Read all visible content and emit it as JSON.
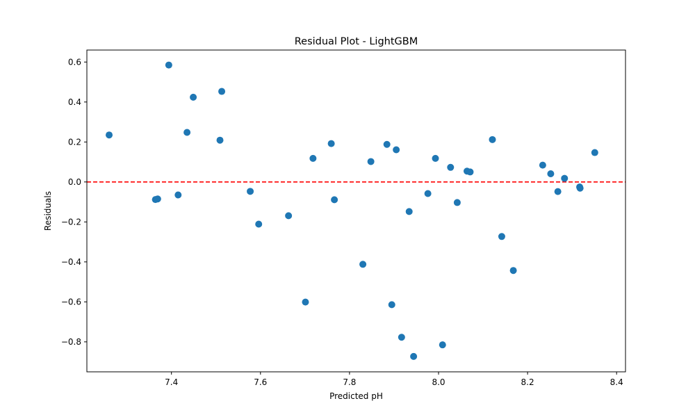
{
  "chart_data": {
    "type": "scatter",
    "title": "Residual Plot - LightGBM",
    "xlabel": "Predicted pH",
    "ylabel": "Residuals",
    "xlim": [
      7.21,
      8.42
    ],
    "ylim": [
      -0.95,
      0.66
    ],
    "xticks": [
      7.4,
      7.6,
      7.8,
      8.0,
      8.2,
      8.4
    ],
    "xtick_labels": [
      "7.4",
      "7.6",
      "7.8",
      "8.0",
      "8.2",
      "8.4"
    ],
    "yticks": [
      0.6,
      0.4,
      0.2,
      0.0,
      -0.2,
      -0.4,
      -0.6,
      -0.8
    ],
    "ytick_labels": [
      "0.6",
      "0.4",
      "0.2",
      "0.0",
      "−0.2",
      "−0.4",
      "−0.6",
      "−0.8"
    ],
    "grid": false,
    "point_color": "#1f77b4",
    "reference_line": {
      "y": 0.0,
      "color": "#ff0000",
      "style": "dashed"
    },
    "points": [
      {
        "x": 7.26,
        "y": 0.235
      },
      {
        "x": 7.364,
        "y": -0.088
      },
      {
        "x": 7.369,
        "y": -0.085
      },
      {
        "x": 7.394,
        "y": 0.585
      },
      {
        "x": 7.415,
        "y": -0.065
      },
      {
        "x": 7.435,
        "y": 0.248
      },
      {
        "x": 7.449,
        "y": 0.424
      },
      {
        "x": 7.509,
        "y": 0.209
      },
      {
        "x": 7.513,
        "y": 0.453
      },
      {
        "x": 7.577,
        "y": -0.047
      },
      {
        "x": 7.596,
        "y": -0.211
      },
      {
        "x": 7.663,
        "y": -0.169
      },
      {
        "x": 7.701,
        "y": -0.601
      },
      {
        "x": 7.718,
        "y": 0.118
      },
      {
        "x": 7.759,
        "y": 0.192
      },
      {
        "x": 7.766,
        "y": -0.089
      },
      {
        "x": 7.83,
        "y": -0.412
      },
      {
        "x": 7.848,
        "y": 0.102
      },
      {
        "x": 7.884,
        "y": 0.188
      },
      {
        "x": 7.895,
        "y": -0.614
      },
      {
        "x": 7.905,
        "y": 0.161
      },
      {
        "x": 7.917,
        "y": -0.777
      },
      {
        "x": 7.934,
        "y": -0.148
      },
      {
        "x": 7.944,
        "y": -0.873
      },
      {
        "x": 7.976,
        "y": -0.058
      },
      {
        "x": 7.993,
        "y": 0.118
      },
      {
        "x": 8.009,
        "y": -0.815
      },
      {
        "x": 8.027,
        "y": 0.073
      },
      {
        "x": 8.042,
        "y": -0.103
      },
      {
        "x": 8.064,
        "y": 0.054
      },
      {
        "x": 8.071,
        "y": 0.05
      },
      {
        "x": 8.121,
        "y": 0.212
      },
      {
        "x": 8.142,
        "y": -0.273
      },
      {
        "x": 8.168,
        "y": -0.443
      },
      {
        "x": 8.234,
        "y": 0.084
      },
      {
        "x": 8.252,
        "y": 0.041
      },
      {
        "x": 8.268,
        "y": -0.048
      },
      {
        "x": 8.283,
        "y": 0.018
      },
      {
        "x": 8.317,
        "y": -0.025
      },
      {
        "x": 8.318,
        "y": -0.031
      },
      {
        "x": 8.351,
        "y": 0.147
      }
    ]
  }
}
